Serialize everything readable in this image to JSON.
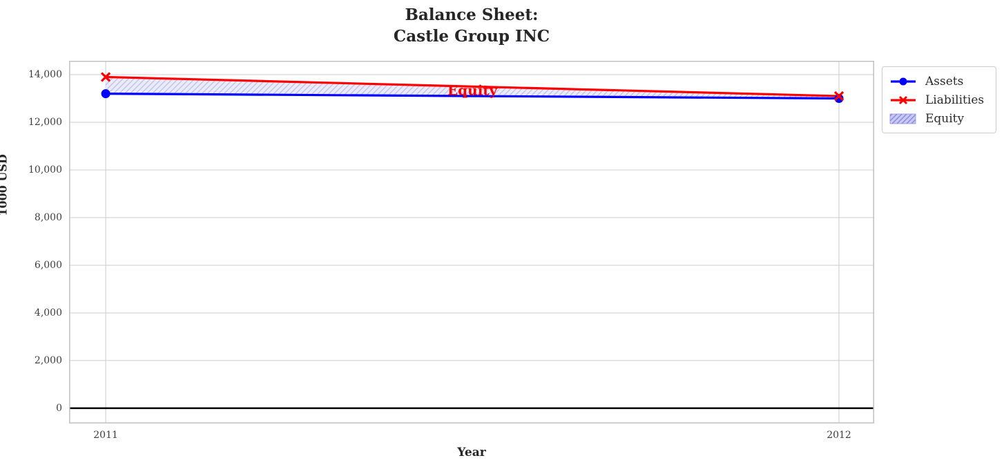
{
  "chart_data": {
    "type": "line",
    "title_lines": [
      "Balance Sheet:",
      "Castle Group INC"
    ],
    "xlabel": "Year",
    "ylabel": "1000 USD",
    "x": [
      2011,
      2012
    ],
    "xtick_labels": [
      "2011",
      "2012"
    ],
    "yticks": [
      0,
      2000,
      4000,
      6000,
      8000,
      10000,
      12000,
      14000
    ],
    "ytick_labels": [
      "0",
      "2,000",
      "4,000",
      "6,000",
      "8,000",
      "10,000",
      "12,000",
      "14,000"
    ],
    "xlim": [
      2010.95,
      2012.048
    ],
    "ylim": [
      -640,
      14580
    ],
    "grid": true,
    "zero_line": true,
    "series": [
      {
        "name": "Assets",
        "values": [
          13200,
          13000
        ],
        "color": "#0000ff",
        "marker": "circle"
      },
      {
        "name": "Liabilities",
        "values": [
          13900,
          13100
        ],
        "color": "#ff0000",
        "marker": "x"
      }
    ],
    "fill_between": {
      "label": "Equity",
      "between": [
        "Liabilities",
        "Assets"
      ],
      "fill_color": "#ebecf8",
      "hatch_color": "#c7c8ee",
      "legend_fill_color": "#c9c9f2",
      "legend_hatch_color": "#8f8fe0"
    },
    "annotation": {
      "text": "Equity",
      "x": 2011.5,
      "y": 13300,
      "color": "#ff0000"
    },
    "legend": {
      "position": "outside-upper-right",
      "entries": [
        "Assets",
        "Liabilities",
        "Equity"
      ]
    }
  },
  "style": {
    "grid_color": "#cccccc",
    "spine_color": "#c4c4c4",
    "zero_line_color": "#000000",
    "title_color": "#262626",
    "tick_color": "#3d3d3d"
  }
}
